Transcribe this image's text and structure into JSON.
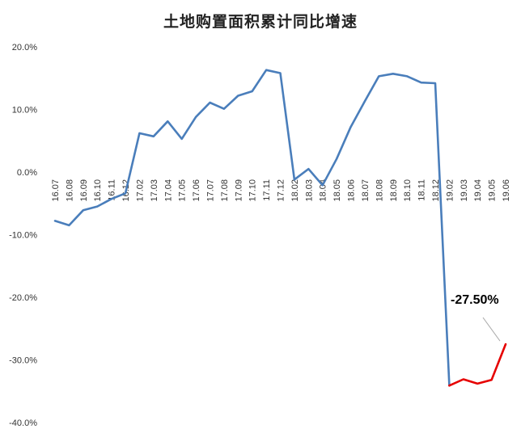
{
  "chart_data": {
    "type": "line",
    "title": "土地购置面积累计同比增速",
    "xlabel": "",
    "ylabel": "",
    "legend": "none",
    "grid": false,
    "categories": [
      "16.07",
      "16.08",
      "16.09",
      "16.10",
      "16.11",
      "16.12",
      "17.02",
      "17.03",
      "17.04",
      "17.05",
      "17.06",
      "17.07",
      "17.08",
      "17.09",
      "17.10",
      "17.11",
      "17.12",
      "18.02",
      "18.03",
      "18.04",
      "18.05",
      "18.06",
      "18.07",
      "18.08",
      "18.09",
      "18.10",
      "18.11",
      "18.12",
      "19.02",
      "19.03",
      "19.04",
      "19.05",
      "19.06"
    ],
    "series": [
      {
        "name": "土地购置面积累计同比增速",
        "values": [
          -7.8,
          -8.5,
          -6.1,
          -5.5,
          -4.3,
          -3.4,
          6.2,
          5.7,
          8.1,
          5.3,
          8.8,
          11.1,
          10.1,
          12.2,
          12.9,
          16.3,
          15.8,
          -1.2,
          0.5,
          -2.1,
          2.1,
          7.2,
          11.3,
          15.3,
          15.7,
          15.3,
          14.3,
          14.2,
          -34.1,
          -33.1,
          -33.8,
          -33.2,
          -27.5
        ]
      }
    ],
    "ylim": [
      -40,
      20
    ],
    "yticks": [
      {
        "value": 20,
        "label": "20.0%"
      },
      {
        "value": 10,
        "label": "10.0%"
      },
      {
        "value": 0,
        "label": "0.0%"
      },
      {
        "value": -10,
        "label": "-10.0%"
      },
      {
        "value": -20,
        "label": "-20.0%"
      },
      {
        "value": -30,
        "label": "-30.0%"
      },
      {
        "value": -40,
        "label": "-40.0%"
      }
    ],
    "line_color": "#4a7ebb",
    "highlight_color": "#e60000",
    "leader_color": "#ababab",
    "highlight_from_index": 28,
    "annotation": {
      "text": "-27.50%",
      "target_category": "19.06",
      "target_value": -27.5
    }
  }
}
